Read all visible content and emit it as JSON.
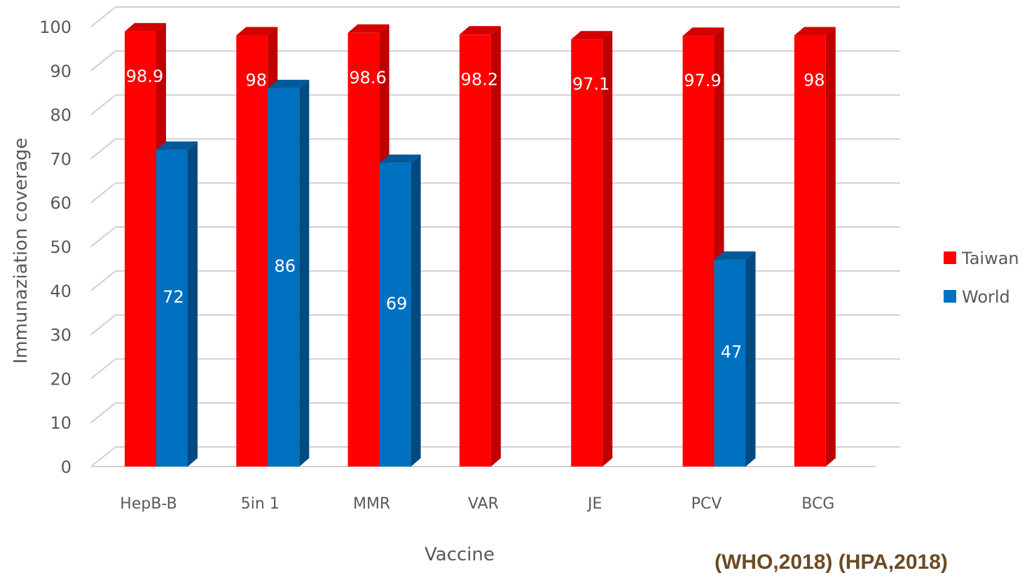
{
  "chart_data": {
    "type": "bar",
    "categories": [
      "HepB-B",
      "5in 1",
      "MMR",
      "VAR",
      "JE",
      "PCV",
      "BCG"
    ],
    "series": [
      {
        "name": "Taiwan",
        "values": [
          98.9,
          98,
          98.6,
          98.2,
          97.1,
          97.9,
          98
        ],
        "color": "#ff0000",
        "side_color": "#c00000",
        "top_color": "#d40000"
      },
      {
        "name": "World",
        "values": [
          72,
          86,
          69,
          null,
          null,
          47,
          null
        ],
        "color": "#0070c0",
        "side_color": "#004a80",
        "top_color": "#005a9a"
      }
    ],
    "title": "",
    "xlabel": "Vaccine",
    "ylabel": "Immunaziation coverage",
    "ylim": [
      0,
      100
    ],
    "yticks": [
      0,
      10,
      20,
      30,
      40,
      50,
      60,
      70,
      80,
      90,
      100
    ],
    "grid": true,
    "legend_position": "right",
    "style": "3d-clustered-column"
  },
  "source": "(WHO,2018) (HPA,2018)"
}
